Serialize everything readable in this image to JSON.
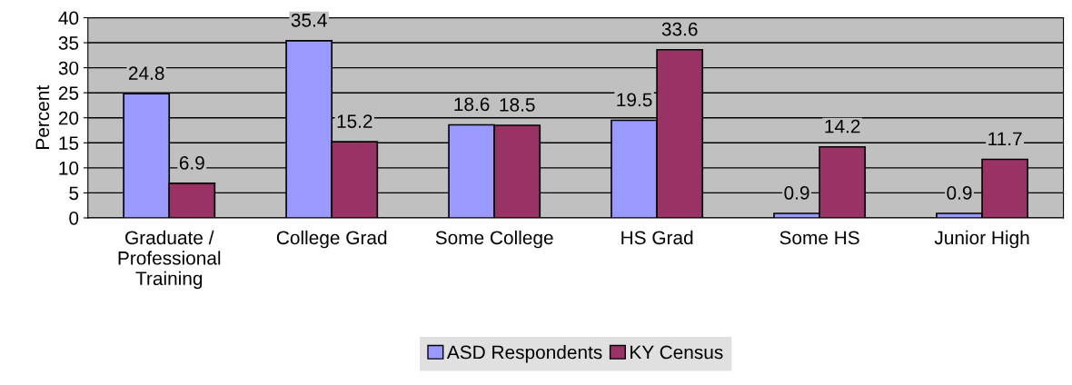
{
  "chart_data": {
    "type": "bar",
    "ylabel": "Percent",
    "categories": [
      "Graduate / Professional Training",
      "College Grad",
      "Some College",
      "HS Grad",
      "Some HS",
      "Junior High"
    ],
    "series": [
      {
        "name": "ASD Respondents",
        "color": "#9999ff",
        "values": [
          24.8,
          35.4,
          18.6,
          19.5,
          0.9,
          0.9
        ]
      },
      {
        "name": "KY Census",
        "color": "#993366",
        "values": [
          6.9,
          15.2,
          18.5,
          33.6,
          14.2,
          11.7
        ]
      }
    ],
    "ylim": [
      0,
      40
    ],
    "yticks": [
      0,
      5,
      10,
      15,
      20,
      25,
      30,
      35,
      40
    ],
    "grid": "y",
    "legend": "bottom",
    "data_labels": true
  }
}
